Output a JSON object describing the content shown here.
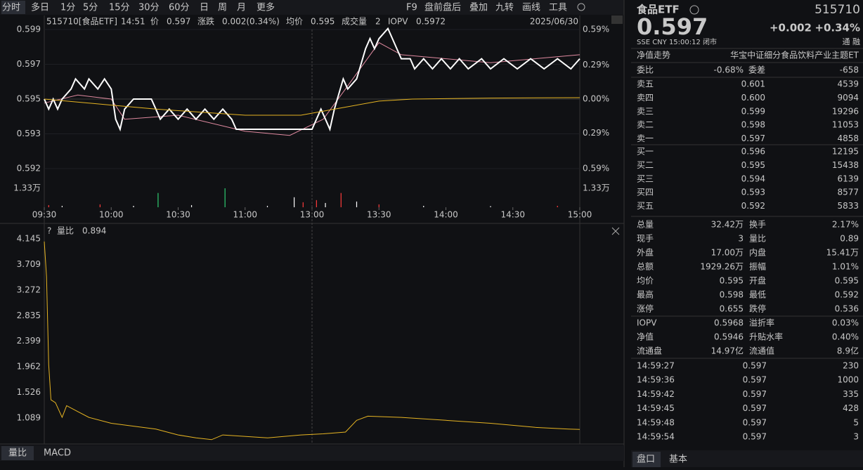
{
  "toolbar": {
    "periods": [
      "分时",
      "多日",
      "1分",
      "5分",
      "15分",
      "30分",
      "60分",
      "日",
      "周",
      "月",
      "更多"
    ],
    "tools": [
      "F9",
      "盘前盘后",
      "叠加",
      "九转",
      "画线",
      "工具"
    ]
  },
  "info": {
    "code": "515710[食品ETF]",
    "time": "14:51",
    "items": [
      {
        "label": "价",
        "value": "0.597"
      },
      {
        "label": "涨跌",
        "value": "0.002(0.34%)"
      },
      {
        "label": "均价",
        "value": "0.595"
      },
      {
        "label": "成交量",
        "value": "2"
      },
      {
        "label": "IOPV",
        "value": "0.5972"
      }
    ],
    "date": "2025/06/30"
  },
  "price_chart": {
    "type": "line",
    "xlim": [
      0,
      240
    ],
    "xticks": [
      {
        "value": 0,
        "label": "09:30"
      },
      {
        "value": 30,
        "label": "10:00"
      },
      {
        "value": 60,
        "label": "10:30"
      },
      {
        "value": 90,
        "label": "11:00"
      },
      {
        "value": 120,
        "label": "13:00"
      },
      {
        "value": 150,
        "label": "13:30"
      },
      {
        "value": 180,
        "label": "14:00"
      },
      {
        "value": 210,
        "label": "14:30"
      },
      {
        "value": 240,
        "label": "15:00"
      }
    ],
    "ylim": [
      0.59155,
      0.59845
    ],
    "yticks": [
      {
        "value": 0.59845,
        "label": "0.599"
      },
      {
        "value": 0.596725,
        "label": "0.597"
      },
      {
        "value": 0.595,
        "label": "0.595"
      },
      {
        "value": 0.593275,
        "label": "0.593"
      },
      {
        "value": 0.59155,
        "label": "0.592"
      }
    ],
    "y2lim": [
      -0.59,
      0.59
    ],
    "y2ticks": [
      {
        "value": 0.59,
        "label": "0.59%"
      },
      {
        "value": 0.29,
        "label": "0.29%"
      },
      {
        "value": 0,
        "label": "0.00%"
      },
      {
        "value": -0.29,
        "label": "0.29%"
      },
      {
        "value": -0.59,
        "label": "0.59%"
      }
    ],
    "series": [
      {
        "color": "#e08aa0",
        "x": [
          0,
          15,
          30,
          36,
          60,
          90,
          110,
          125,
          135,
          150,
          160,
          200,
          240
        ],
        "values": [
          0.5948,
          0.5952,
          0.595,
          0.594,
          0.5942,
          0.5934,
          0.5932,
          0.594,
          0.5955,
          0.5978,
          0.5972,
          0.5968,
          0.5972
        ]
      },
      {
        "color": "#ffffff",
        "x": [
          0,
          2,
          4,
          6,
          8,
          12,
          14,
          18,
          20,
          24,
          27,
          30,
          32,
          34,
          36,
          40,
          48,
          50,
          52,
          56,
          60,
          64,
          68,
          72,
          76,
          80,
          84,
          86,
          110,
          120,
          122,
          124,
          126,
          128,
          130,
          134,
          136,
          140,
          144,
          146,
          148,
          150,
          154,
          156,
          160,
          164,
          166,
          170,
          174,
          178,
          182,
          186,
          190,
          196,
          200,
          206,
          212,
          218,
          224,
          230,
          236,
          240
        ],
        "values": [
          0.595,
          0.5945,
          0.595,
          0.5945,
          0.595,
          0.5955,
          0.596,
          0.5955,
          0.596,
          0.5955,
          0.596,
          0.5955,
          0.594,
          0.5935,
          0.5945,
          0.595,
          0.595,
          0.5945,
          0.594,
          0.5945,
          0.594,
          0.5945,
          0.594,
          0.5945,
          0.594,
          0.5945,
          0.594,
          0.5935,
          0.5935,
          0.5935,
          0.594,
          0.5945,
          0.594,
          0.5935,
          0.5945,
          0.596,
          0.5955,
          0.596,
          0.5975,
          0.598,
          0.5975,
          0.598,
          0.5985,
          0.598,
          0.597,
          0.597,
          0.5965,
          0.597,
          0.5965,
          0.597,
          0.5965,
          0.597,
          0.5965,
          0.597,
          0.5965,
          0.597,
          0.5965,
          0.597,
          0.5965,
          0.597,
          0.5965,
          0.597
        ]
      },
      {
        "color": "#e6b422",
        "x": [
          0,
          10,
          30,
          50,
          90,
          115,
          125,
          135,
          150,
          165,
          200,
          240
        ],
        "values": [
          0.595,
          0.5949,
          0.5947,
          0.5945,
          0.5942,
          0.5942,
          0.5944,
          0.5946,
          0.5949,
          0.595,
          0.59505,
          0.59507
        ]
      }
    ],
    "volume": {
      "ylim": [
        0,
        1.33
      ],
      "yticks": [
        {
          "value": 1.33,
          "label": "1.33万"
        }
      ],
      "x": [
        2,
        8,
        25,
        40,
        51,
        66,
        81,
        100,
        112,
        116,
        122,
        126,
        133,
        140,
        150,
        170,
        200,
        230
      ],
      "values": [
        0.15,
        0.1,
        0.2,
        0.1,
        1.0,
        0.15,
        1.33,
        0.1,
        0.7,
        0.35,
        0.5,
        0.3,
        1.0,
        0.4,
        0.2,
        0.1,
        0.08,
        0.1
      ],
      "colors": [
        "#ff3b3b",
        "#ffffff",
        "#ff3b3b",
        "#ffffff",
        "#2ecc71",
        "#ffffff",
        "#2ecc71",
        "#ffffff",
        "#ffffff",
        "#ff3b3b",
        "#ff3b3b",
        "#ffffff",
        "#ff3b3b",
        "#ffffff",
        "#ff3b3b",
        "#ffffff",
        "#ffffff",
        "#ff3b3b"
      ]
    }
  },
  "ratio_chart": {
    "type": "line",
    "label": "量比",
    "value": "0.894",
    "xlim": [
      0,
      240
    ],
    "ylim": [
      0.646,
      4.145
    ],
    "yticks": [
      4.145,
      3.709,
      3.272,
      2.835,
      2.399,
      1.962,
      1.526,
      1.089
    ],
    "color": "#e6b422",
    "x": [
      0,
      1,
      2,
      3,
      5,
      8,
      10,
      15,
      20,
      30,
      40,
      50,
      60,
      68,
      75,
      80,
      100,
      115,
      125,
      135,
      140,
      145,
      160,
      180,
      200,
      220,
      235,
      240
    ],
    "values": [
      4.1,
      3.5,
      2.0,
      1.4,
      1.35,
      1.1,
      1.3,
      1.2,
      1.1,
      1.0,
      0.95,
      0.9,
      0.8,
      0.75,
      0.72,
      0.8,
      0.75,
      0.8,
      0.82,
      0.85,
      1.05,
      1.12,
      1.1,
      1.05,
      1.0,
      0.93,
      0.9,
      0.894
    ]
  },
  "bottom_tabs": [
    "量比",
    "MACD"
  ],
  "quote": {
    "name": "食品ETF",
    "code": "515710",
    "price": "0.597",
    "change": "+0.002",
    "pct": "+0.34%",
    "status": "SSE   CNY   15:00:12   闭市",
    "flags": "通  融",
    "nav_label": "净值走势",
    "full_name": "华宝中证细分食品饮料产业主题ET",
    "ratio": [
      {
        "label": "委比",
        "value": "-0.68%",
        "color": "green"
      },
      {
        "label": "委差",
        "value": "-658",
        "color": "green"
      }
    ],
    "asks": [
      {
        "label": "卖五",
        "price": "0.601",
        "volume": "4539",
        "color": "red"
      },
      {
        "label": "卖四",
        "price": "0.600",
        "volume": "9094",
        "color": "red"
      },
      {
        "label": "卖三",
        "price": "0.599",
        "volume": "19296",
        "color": "red"
      },
      {
        "label": "卖二",
        "price": "0.598",
        "volume": "11053",
        "color": "red"
      },
      {
        "label": "卖一",
        "price": "0.597",
        "volume": "4858",
        "color": "red"
      }
    ],
    "bids": [
      {
        "label": "买一",
        "price": "0.596",
        "volume": "12195",
        "color": "red"
      },
      {
        "label": "买二",
        "price": "0.595",
        "volume": "15438",
        "color": "white"
      },
      {
        "label": "买三",
        "price": "0.594",
        "volume": "6139",
        "color": "green"
      },
      {
        "label": "买四",
        "price": "0.593",
        "volume": "8577",
        "color": "green"
      },
      {
        "label": "买五",
        "price": "0.592",
        "volume": "5833",
        "color": "green"
      }
    ],
    "stats": [
      [
        {
          "label": "总量",
          "value": "32.42万",
          "color": "white"
        },
        {
          "label": "换手",
          "value": "2.17%",
          "color": "white"
        }
      ],
      [
        {
          "label": "现手",
          "value": "3",
          "color": "white"
        },
        {
          "label": "量比",
          "value": "0.89",
          "color": "white"
        }
      ],
      [
        {
          "label": "外盘",
          "value": "17.00万",
          "color": "red"
        },
        {
          "label": "内盘",
          "value": "15.41万",
          "color": "green"
        }
      ],
      [
        {
          "label": "总额",
          "value": "1929.26万",
          "color": "white"
        },
        {
          "label": "振幅",
          "value": "1.01%",
          "color": "white"
        }
      ],
      [
        {
          "label": "均价",
          "value": "0.595",
          "color": "red"
        },
        {
          "label": "开盘",
          "value": "0.595",
          "color": "white"
        }
      ],
      [
        {
          "label": "最高",
          "value": "0.598",
          "color": "red"
        },
        {
          "label": "最低",
          "value": "0.592",
          "color": "green"
        }
      ],
      [
        {
          "label": "涨停",
          "value": "0.655",
          "color": "red"
        },
        {
          "label": "跌停",
          "value": "0.536",
          "color": "green"
        }
      ]
    ],
    "fund": [
      [
        {
          "label": "IOPV",
          "value": "0.5968",
          "color": "white"
        },
        {
          "label": "溢折率",
          "value": "0.03%",
          "color": "red"
        }
      ],
      [
        {
          "label": "净值",
          "value": "0.5946",
          "color": "green"
        },
        {
          "label": "升贴水率",
          "value": "0.40%",
          "color": "red"
        }
      ],
      [
        {
          "label": "流通盘",
          "value": "14.97亿",
          "color": "white"
        },
        {
          "label": "流通值",
          "value": "8.9亿",
          "color": "white"
        }
      ]
    ],
    "trades": [
      {
        "time": "14:59:27",
        "price": "0.597",
        "volume": "230"
      },
      {
        "time": "14:59:36",
        "price": "0.597",
        "volume": "1000"
      },
      {
        "time": "14:59:42",
        "price": "0.597",
        "volume": "335"
      },
      {
        "time": "14:59:45",
        "price": "0.597",
        "volume": "428"
      },
      {
        "time": "14:59:48",
        "price": "0.597",
        "volume": "5"
      },
      {
        "time": "14:59:54",
        "price": "0.597",
        "volume": "3"
      }
    ],
    "tabs": [
      "盘口",
      "基本"
    ]
  }
}
